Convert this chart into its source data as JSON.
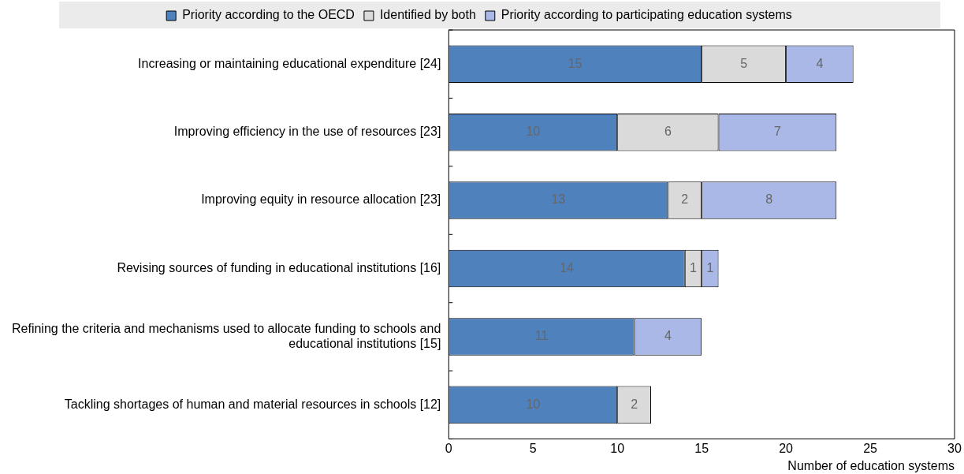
{
  "chart_data": {
    "type": "bar",
    "orientation": "horizontal",
    "stacked": true,
    "xlabel": "Number of education systems",
    "categories": [
      "Increasing or maintaining educational expenditure [24]",
      "Improving efficiency in the use of resources [23]",
      "Improving equity in resource allocation [23]",
      "Revising sources of funding in educational institutions [16]",
      "Refining the criteria and mechanisms used to allocate funding to schools and educational institutions [15]",
      "Tackling shortages of human and material resources in schools [12]"
    ],
    "series": [
      {
        "name": "Priority according to the OECD",
        "color": "#4f81bd",
        "values": [
          15,
          10,
          13,
          14,
          11,
          10
        ]
      },
      {
        "name": "Identified by both",
        "color": "#dadada",
        "values": [
          5,
          6,
          2,
          1,
          null,
          2
        ]
      },
      {
        "name": "Priority according to participating education systems",
        "color": "#a9b8e6",
        "values": [
          4,
          7,
          8,
          1,
          4,
          null
        ]
      }
    ],
    "xlim": [
      0,
      30
    ],
    "xticks": [
      0,
      5,
      10,
      15,
      20,
      25,
      30
    ],
    "grid": false,
    "legend": "top",
    "data_labels": true
  }
}
